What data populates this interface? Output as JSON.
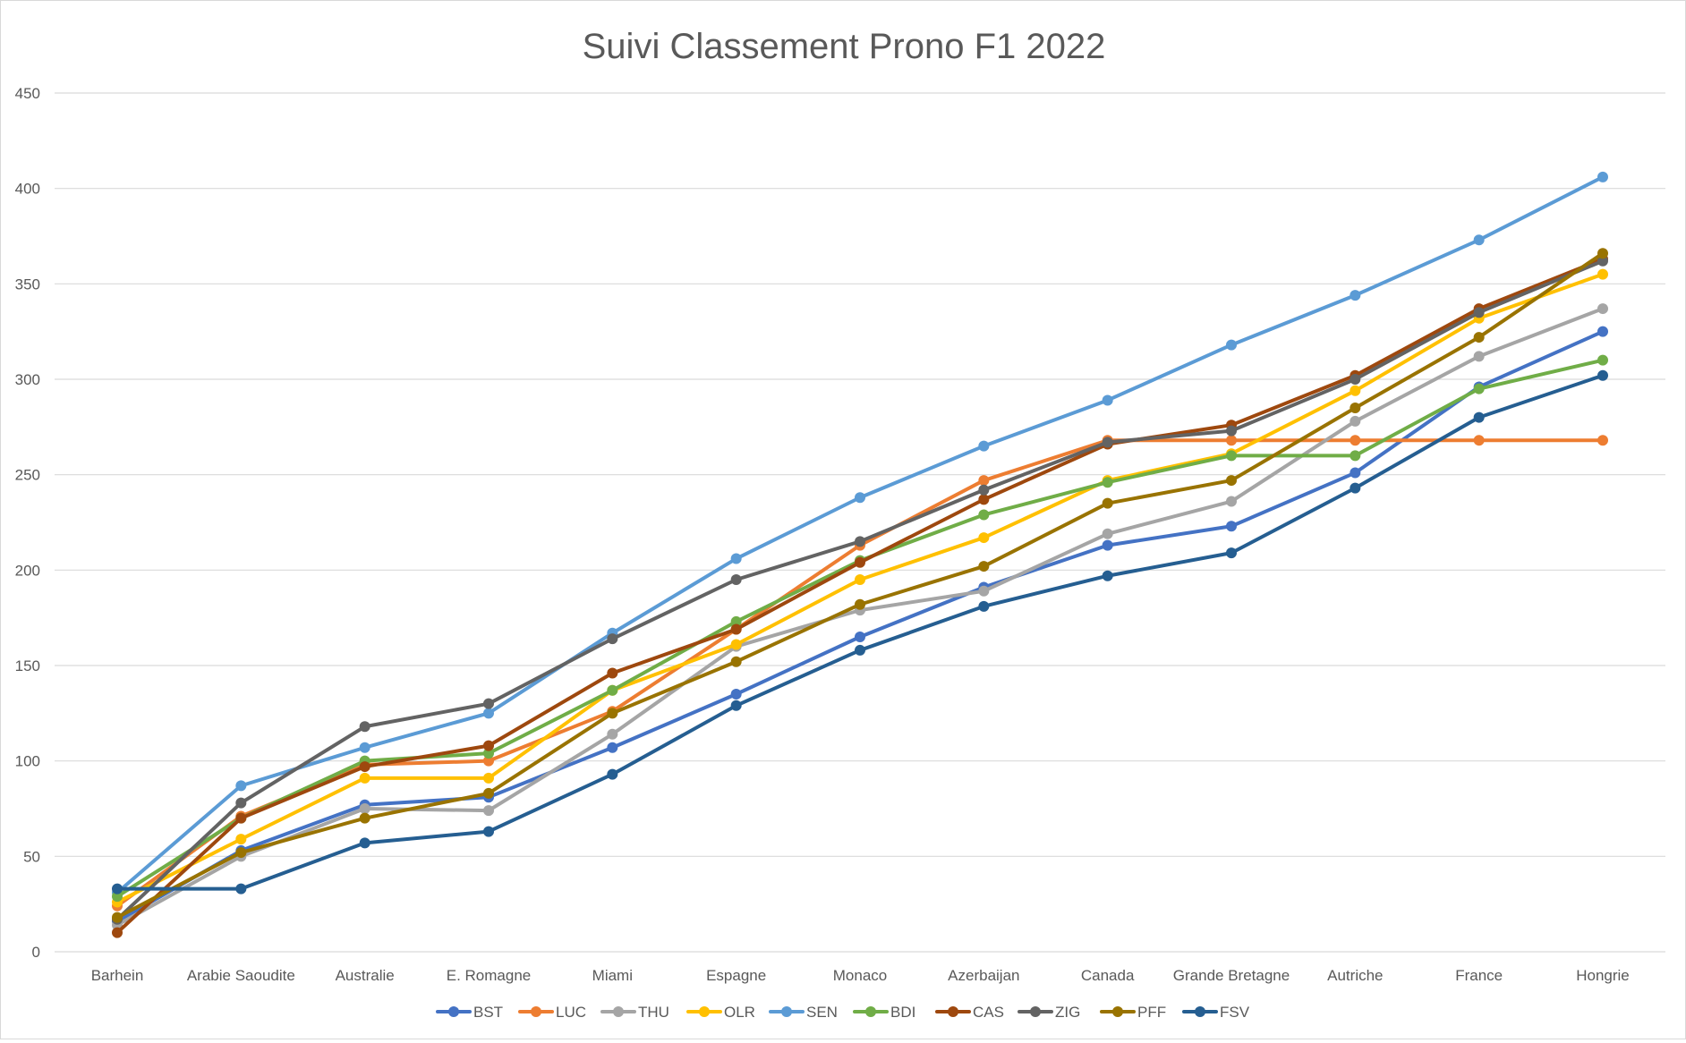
{
  "chart_data": {
    "type": "line",
    "title": "Suivi Classement Prono F1 2022",
    "xlabel": "",
    "ylabel": "",
    "ylim": [
      0,
      450
    ],
    "yticks": [
      0,
      50,
      100,
      150,
      200,
      250,
      300,
      350,
      400,
      450
    ],
    "grid": true,
    "legend_position": "bottom",
    "categories": [
      "Barhein",
      "Arabie Saoudite",
      "Australie",
      "E. Romagne",
      "Miami",
      "Espagne",
      "Monaco",
      "Azerbaijan",
      "Canada",
      "Grande Bretagne",
      "Autriche",
      "France",
      "Hongrie"
    ],
    "series": [
      {
        "name": "BST",
        "color": "#4472C4",
        "values": [
          16,
          53,
          77,
          81,
          107,
          135,
          165,
          191,
          213,
          223,
          251,
          296,
          325
        ]
      },
      {
        "name": "LUC",
        "color": "#ED7D31",
        "values": [
          24,
          71,
          98,
          100,
          126,
          169,
          213,
          247,
          268,
          268,
          268,
          268,
          268
        ]
      },
      {
        "name": "THU",
        "color": "#A5A5A5",
        "values": [
          14,
          50,
          75,
          74,
          114,
          160,
          179,
          189,
          219,
          236,
          278,
          312,
          337
        ]
      },
      {
        "name": "OLR",
        "color": "#FFC000",
        "values": [
          26,
          59,
          91,
          91,
          137,
          161,
          195,
          217,
          247,
          261,
          294,
          332,
          355
        ]
      },
      {
        "name": "SEN",
        "color": "#5B9BD5",
        "values": [
          31,
          87,
          107,
          125,
          167,
          206,
          238,
          265,
          289,
          318,
          344,
          373,
          406
        ]
      },
      {
        "name": "BDI",
        "color": "#70AD47",
        "values": [
          29,
          70,
          100,
          104,
          137,
          173,
          205,
          229,
          246,
          260,
          260,
          295,
          310
        ]
      },
      {
        "name": "CAS",
        "color": "#9E480E",
        "values": [
          10,
          70,
          97,
          108,
          146,
          169,
          204,
          237,
          266,
          276,
          302,
          337,
          363
        ]
      },
      {
        "name": "ZIG",
        "color": "#636363",
        "values": [
          17,
          78,
          118,
          130,
          164,
          195,
          215,
          242,
          267,
          273,
          300,
          335,
          362
        ]
      },
      {
        "name": "PFF",
        "color": "#997300",
        "values": [
          18,
          52,
          70,
          83,
          125,
          152,
          182,
          202,
          235,
          247,
          285,
          322,
          366
        ]
      },
      {
        "name": "FSV",
        "color": "#255E91",
        "values": [
          33,
          33,
          57,
          63,
          93,
          129,
          158,
          181,
          197,
          209,
          243,
          280,
          302
        ]
      }
    ]
  }
}
